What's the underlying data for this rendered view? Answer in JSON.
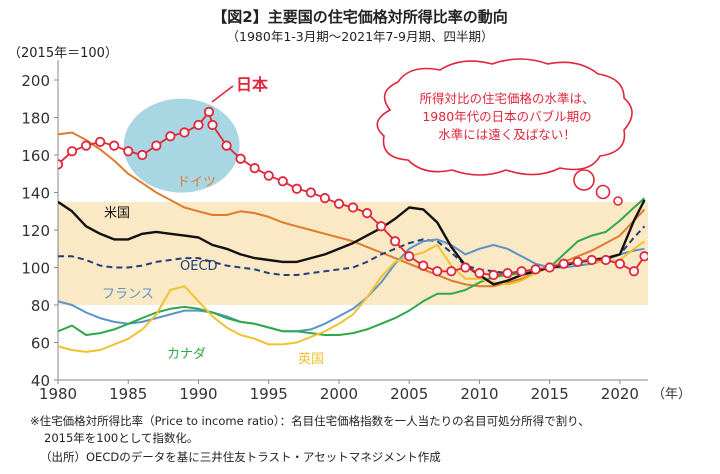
{
  "title": "【図2】主要国の住宅価格対所得比率の動向",
  "subtitle": "（1980年1-3月期～2021年7-9月期、四半期）",
  "base_label": "（2015年＝100）",
  "year_unit": "（年）",
  "note_line1": "※住宅価格対所得比率（Price to income ratio）：名目住宅価格指数を一人当たりの名目可処分所得で割り、",
  "note_line2": "2015年を100として指数化。",
  "source": "（出所）OECDのデータを基に三井住友トラスト・アセットマネジメント作成",
  "bubble": {
    "line1": "所得対比の住宅価格の水準は、",
    "line2": "1980年代の日本のバブル期の",
    "line3": "水準には遠く及ばない！"
  },
  "colors": {
    "japan": "#e0263a",
    "us": "#111111",
    "oecd": "#1f3f7a",
    "germany": "#e07b2c",
    "france": "#5b93c8",
    "canada": "#2fa84a",
    "uk": "#f2c12e",
    "band": "#fbe9c6",
    "bubble_fill": "#a9d6e3",
    "axis_text": "#333333"
  },
  "chart_data": {
    "type": "line",
    "x_unit": "年",
    "xlim": [
      1980,
      2022
    ],
    "ylim": [
      40,
      200
    ],
    "xticks": [
      1980,
      1985,
      1990,
      1995,
      2000,
      2005,
      2010,
      2015,
      2020
    ],
    "yticks": [
      40,
      60,
      80,
      100,
      120,
      140,
      160,
      180,
      200
    ],
    "shaded_band": [
      80,
      135
    ],
    "series": [
      {
        "name": "日本",
        "key": "japan",
        "marker": "circle",
        "x": [
          1980,
          1981,
          1982,
          1983,
          1984,
          1985,
          1986,
          1987,
          1988,
          1989,
          1990,
          1990.75,
          1991,
          1992,
          1993,
          1994,
          1995,
          1996,
          1997,
          1998,
          1999,
          2000,
          2001,
          2002,
          2003,
          2004,
          2005,
          2006,
          2007,
          2008,
          2009,
          2010,
          2011,
          2012,
          2013,
          2014,
          2015,
          2016,
          2017,
          2018,
          2019,
          2020,
          2021,
          2021.75
        ],
        "y": [
          155,
          162,
          165,
          167,
          165,
          162,
          160,
          165,
          170,
          172,
          176,
          183,
          176,
          165,
          158,
          153,
          149,
          146,
          142,
          140,
          137,
          134,
          132,
          129,
          122,
          114,
          106,
          101,
          98,
          98,
          100,
          97,
          96,
          97,
          98,
          99,
          100,
          102,
          103,
          104,
          104,
          102,
          98,
          106
        ]
      },
      {
        "name": "米国",
        "key": "us",
        "x": [
          1980,
          1981,
          1982,
          1983,
          1984,
          1985,
          1986,
          1987,
          1988,
          1989,
          1990,
          1991,
          1992,
          1993,
          1994,
          1995,
          1996,
          1997,
          1998,
          1999,
          2000,
          2001,
          2002,
          2003,
          2004,
          2005,
          2006,
          2007,
          2008,
          2009,
          2010,
          2011,
          2012,
          2013,
          2014,
          2015,
          2016,
          2017,
          2018,
          2019,
          2020,
          2021,
          2021.75
        ],
        "y": [
          135,
          130,
          122,
          118,
          115,
          115,
          118,
          119,
          118,
          117,
          116,
          112,
          110,
          107,
          105,
          104,
          103,
          103,
          105,
          107,
          110,
          113,
          117,
          121,
          126,
          132,
          131,
          124,
          111,
          101,
          96,
          91,
          93,
          96,
          98,
          100,
          101,
          103,
          104,
          105,
          107,
          125,
          136
        ]
      },
      {
        "name": "OECD",
        "key": "oecd",
        "dashed": true,
        "x": [
          1980,
          1981,
          1982,
          1983,
          1984,
          1985,
          1986,
          1987,
          1988,
          1989,
          1990,
          1991,
          1992,
          1993,
          1994,
          1995,
          1996,
          1997,
          1998,
          1999,
          2000,
          2001,
          2002,
          2003,
          2004,
          2005,
          2006,
          2007,
          2008,
          2009,
          2010,
          2011,
          2012,
          2013,
          2014,
          2015,
          2016,
          2017,
          2018,
          2019,
          2020,
          2021,
          2021.75
        ],
        "y": [
          106,
          106,
          104,
          101,
          100,
          100,
          101,
          103,
          104,
          105,
          105,
          103,
          101,
          100,
          99,
          97,
          96,
          96,
          97,
          98,
          99,
          100,
          103,
          107,
          110,
          113,
          115,
          114,
          108,
          101,
          99,
          98,
          97,
          97,
          98,
          100,
          101,
          103,
          104,
          104,
          107,
          116,
          122
        ]
      },
      {
        "name": "ドイツ",
        "key": "germany",
        "x": [
          1980,
          1981,
          1982,
          1983,
          1984,
          1985,
          1986,
          1987,
          1988,
          1989,
          1990,
          1991,
          1992,
          1993,
          1994,
          1995,
          1996,
          1997,
          1998,
          1999,
          2000,
          2001,
          2002,
          2003,
          2004,
          2005,
          2006,
          2007,
          2008,
          2009,
          2010,
          2011,
          2012,
          2013,
          2014,
          2015,
          2016,
          2017,
          2018,
          2019,
          2020,
          2021,
          2021.75
        ],
        "y": [
          171,
          172,
          168,
          163,
          157,
          150,
          145,
          140,
          136,
          132,
          130,
          128,
          128,
          130,
          129,
          127,
          124,
          122,
          120,
          118,
          116,
          114,
          111,
          108,
          105,
          102,
          99,
          96,
          93,
          91,
          90,
          90,
          92,
          94,
          97,
          100,
          103,
          106,
          109,
          113,
          117,
          125,
          131
        ]
      },
      {
        "name": "フランス",
        "key": "france",
        "x": [
          1980,
          1981,
          1982,
          1983,
          1984,
          1985,
          1986,
          1987,
          1988,
          1989,
          1990,
          1991,
          1992,
          1993,
          1994,
          1995,
          1996,
          1997,
          1998,
          1999,
          2000,
          2001,
          2002,
          2003,
          2004,
          2005,
          2006,
          2007,
          2008,
          2009,
          2010,
          2011,
          2012,
          2013,
          2014,
          2015,
          2016,
          2017,
          2018,
          2019,
          2020,
          2021,
          2021.75
        ],
        "y": [
          82,
          80,
          76,
          73,
          71,
          70,
          71,
          73,
          75,
          77,
          77,
          76,
          74,
          71,
          70,
          68,
          66,
          66,
          67,
          70,
          74,
          78,
          84,
          92,
          102,
          110,
          114,
          115,
          112,
          107,
          110,
          112,
          110,
          106,
          102,
          100,
          100,
          101,
          102,
          104,
          107,
          109,
          110
        ]
      },
      {
        "name": "カナダ",
        "key": "canada",
        "x": [
          1980,
          1981,
          1982,
          1983,
          1984,
          1985,
          1986,
          1987,
          1988,
          1989,
          1990,
          1991,
          1992,
          1993,
          1994,
          1995,
          1996,
          1997,
          1998,
          1999,
          2000,
          2001,
          2002,
          2003,
          2004,
          2005,
          2006,
          2007,
          2008,
          2009,
          2010,
          2011,
          2012,
          2013,
          2014,
          2015,
          2016,
          2017,
          2018,
          2019,
          2020,
          2021,
          2021.75
        ],
        "y": [
          66,
          69,
          64,
          65,
          67,
          70,
          73,
          76,
          78,
          79,
          78,
          76,
          73,
          71,
          70,
          68,
          66,
          66,
          65,
          64,
          64,
          65,
          67,
          70,
          73,
          77,
          82,
          86,
          86,
          88,
          92,
          95,
          96,
          97,
          98,
          100,
          107,
          114,
          117,
          119,
          125,
          132,
          137
        ]
      },
      {
        "name": "英国",
        "key": "uk",
        "x": [
          1980,
          1981,
          1982,
          1983,
          1984,
          1985,
          1986,
          1987,
          1988,
          1989,
          1990,
          1991,
          1992,
          1993,
          1994,
          1995,
          1996,
          1997,
          1998,
          1999,
          2000,
          2001,
          2002,
          2003,
          2004,
          2005,
          2006,
          2007,
          2008,
          2009,
          2010,
          2011,
          2012,
          2013,
          2014,
          2015,
          2016,
          2017,
          2018,
          2019,
          2020,
          2021,
          2021.75
        ],
        "y": [
          58,
          56,
          55,
          56,
          59,
          62,
          67,
          75,
          88,
          90,
          82,
          74,
          68,
          64,
          62,
          59,
          59,
          60,
          63,
          66,
          70,
          75,
          84,
          95,
          103,
          106,
          108,
          112,
          101,
          94,
          94,
          92,
          91,
          93,
          97,
          100,
          102,
          103,
          103,
          103,
          104,
          110,
          114
        ]
      }
    ]
  }
}
